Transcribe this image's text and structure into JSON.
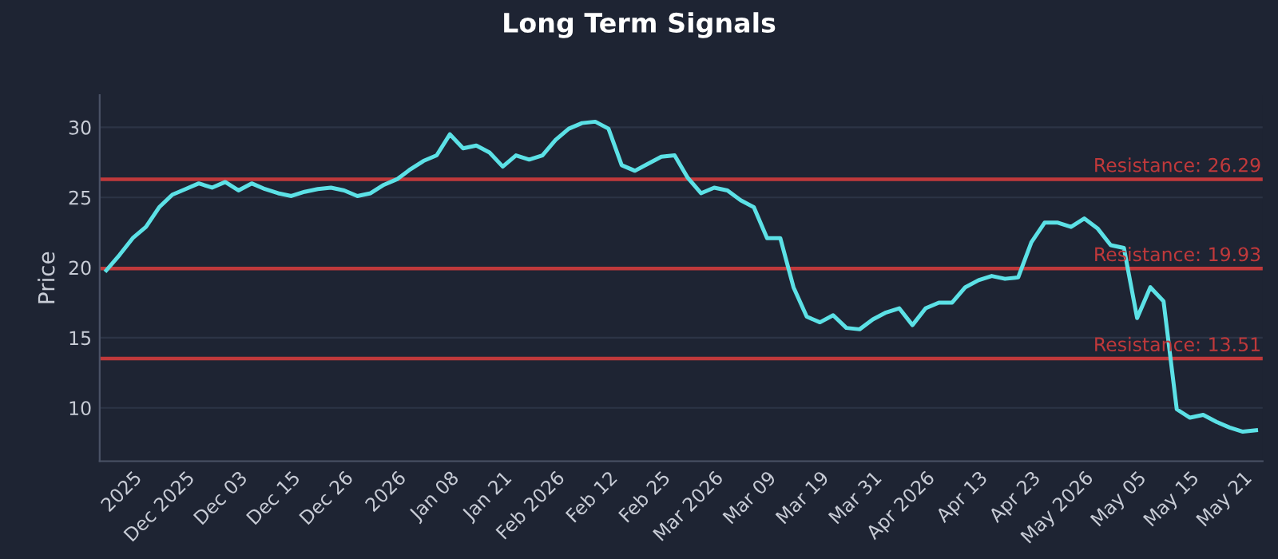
{
  "chart_data": {
    "type": "line",
    "title": "Long Term Signals",
    "ylabel": "Price",
    "categories": [
      null,
      null,
      "2025",
      null,
      null,
      null,
      "Dec 2025",
      null,
      null,
      null,
      "Dec 03",
      null,
      null,
      null,
      "Dec 15",
      null,
      null,
      null,
      "Dec 26",
      null,
      null,
      null,
      "2026",
      null,
      null,
      null,
      "Jan 08",
      null,
      null,
      null,
      "Jan 21",
      null,
      null,
      null,
      "Feb 2026",
      null,
      null,
      null,
      "Feb 12",
      null,
      null,
      null,
      "Feb 25",
      null,
      null,
      null,
      "Mar 2026",
      null,
      null,
      null,
      "Mar 09",
      null,
      null,
      null,
      "Mar 19",
      null,
      null,
      null,
      "Mar 31",
      null,
      null,
      null,
      "Apr 2026",
      null,
      null,
      null,
      "Apr 13",
      null,
      null,
      null,
      "Apr 23",
      null,
      null,
      null,
      "May 2026",
      null,
      null,
      null,
      "May 05",
      null,
      null,
      null,
      "May 15",
      null,
      null,
      null,
      "May 21",
      null
    ],
    "series": [
      {
        "color": "#5ce1e6",
        "values": [
          19.8,
          20.9,
          22.1,
          22.9,
          24.3,
          25.2,
          25.6,
          26.0,
          25.7,
          26.1,
          25.5,
          26.0,
          25.6,
          25.3,
          25.1,
          25.4,
          25.6,
          25.7,
          25.5,
          25.1,
          25.3,
          25.9,
          26.3,
          27.0,
          27.6,
          28.0,
          29.5,
          28.5,
          28.7,
          28.2,
          27.2,
          28.0,
          27.7,
          28.0,
          29.1,
          29.9,
          30.3,
          30.4,
          29.9,
          27.3,
          26.9,
          27.4,
          27.9,
          28.0,
          26.4,
          25.3,
          25.7,
          25.5,
          24.8,
          24.3,
          22.1,
          22.1,
          18.6,
          16.5,
          16.1,
          16.6,
          15.7,
          15.6,
          16.3,
          16.8,
          17.1,
          15.9,
          17.1,
          17.5,
          17.5,
          18.6,
          19.1,
          19.4,
          19.2,
          19.3,
          21.8,
          23.2,
          23.2,
          22.9,
          23.5,
          22.8,
          21.6,
          21.4,
          16.4,
          18.6,
          17.6,
          9.9,
          9.3,
          9.5,
          9.0,
          8.6,
          8.3,
          8.4
        ]
      }
    ],
    "ylim": [
      6.2,
      32.3
    ],
    "yticks": [
      10,
      15,
      20,
      25,
      30
    ],
    "grid": "y",
    "legend": false,
    "ref_lines": [
      {
        "axis": "y",
        "value": 26.29,
        "label": "Resistance: 26.29",
        "color": "#c0393b"
      },
      {
        "axis": "y",
        "value": 19.93,
        "label": "Resistance: 19.93",
        "color": "#c0393b"
      },
      {
        "axis": "y",
        "value": 13.51,
        "label": "Resistance: 13.51",
        "color": "#c0393b"
      }
    ]
  }
}
